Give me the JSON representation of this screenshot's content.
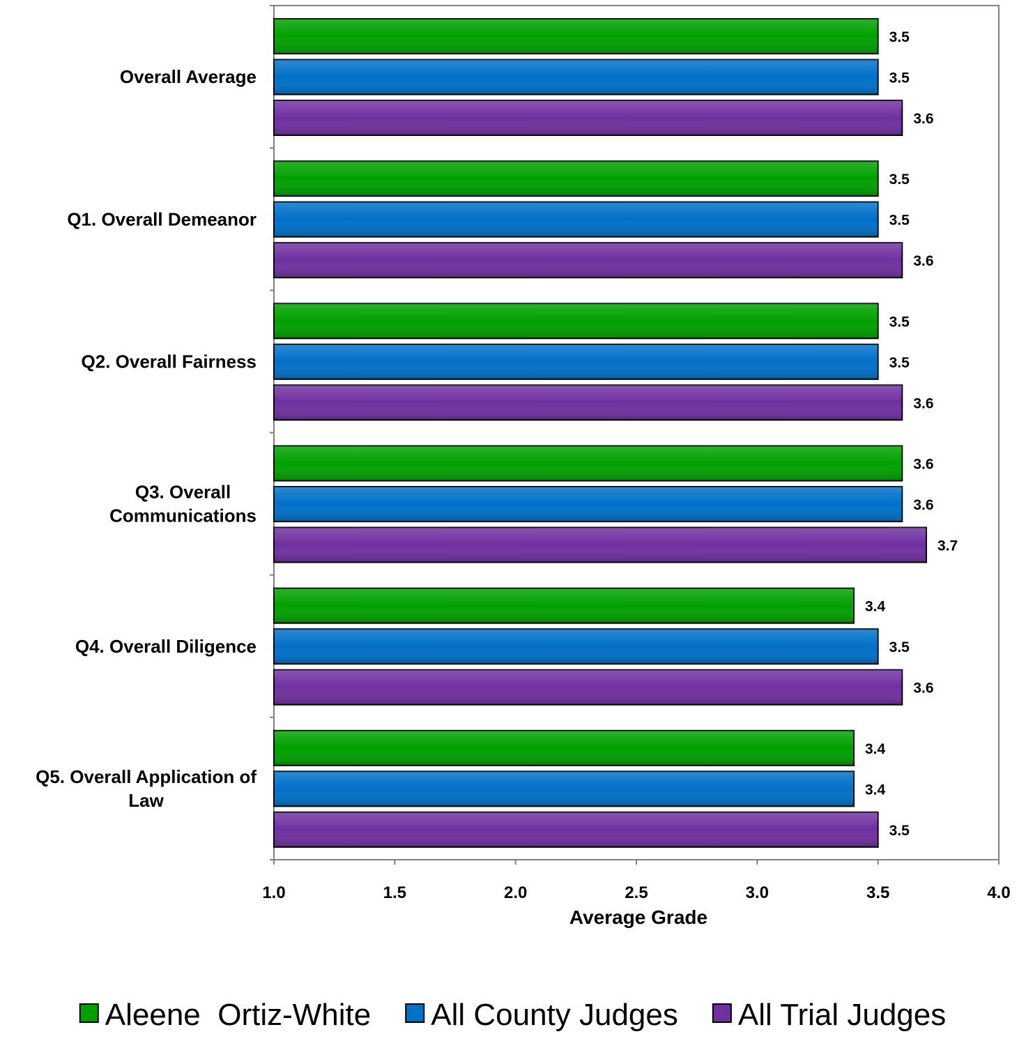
{
  "chart_data": {
    "type": "bar",
    "orientation": "horizontal",
    "categories": [
      "Overall Average",
      "Q1. Overall Demeanor",
      "Q2. Overall Fairness",
      "Q3. Overall Communications",
      "Q4. Overall Diligence",
      "Q5. Overall Application of Law"
    ],
    "category_label_lines": [
      [
        "Overall Average"
      ],
      [
        "Q1. Overall Demeanor"
      ],
      [
        "Q2. Overall Fairness"
      ],
      [
        "Q3. Overall",
        "Communications"
      ],
      [
        "Q4. Overall Diligence"
      ],
      [
        "Q5. Overall Application of",
        "Law"
      ]
    ],
    "series": [
      {
        "name": "Aleene  Ortiz-White",
        "color": "#00A000",
        "values": [
          3.5,
          3.5,
          3.5,
          3.6,
          3.4,
          3.4
        ],
        "labels": [
          "3.5",
          "3.5",
          "3.5",
          "3.6",
          "3.4",
          "3.4"
        ]
      },
      {
        "name": "All County Judges",
        "color": "#0070C8",
        "values": [
          3.5,
          3.5,
          3.5,
          3.6,
          3.5,
          3.4
        ],
        "labels": [
          "3.5",
          "3.5",
          "3.5",
          "3.6",
          "3.5",
          "3.4"
        ]
      },
      {
        "name": "All Trial Judges",
        "color": "#7030A0",
        "values": [
          3.6,
          3.6,
          3.6,
          3.7,
          3.6,
          3.5
        ],
        "labels": [
          "3.6",
          "3.6",
          "3.6",
          "3.7",
          "3.6",
          "3.5"
        ]
      }
    ],
    "xlabel": "Average Grade",
    "ylabel": "",
    "xlim": [
      1.0,
      4.0
    ],
    "xticks": [
      "1.0",
      "1.5",
      "2.0",
      "2.5",
      "3.0",
      "3.5",
      "4.0"
    ],
    "grid": false,
    "legend_position": "bottom"
  }
}
